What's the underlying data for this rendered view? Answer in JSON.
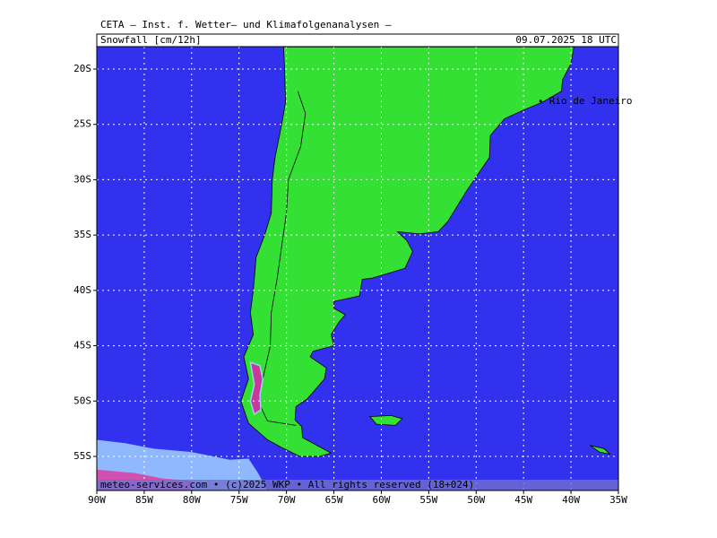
{
  "header": {
    "title": "CETA — Inst. f. Wetter— und Klimafolgenanalysen —",
    "field": "Snowfall [cm/12h]",
    "valid": "09.07.2025 18 UTC"
  },
  "map": {
    "lat_labels": [
      "20S",
      "25S",
      "30S",
      "35S",
      "40S",
      "45S",
      "50S",
      "55S"
    ],
    "lon_labels": [
      "90W",
      "85W",
      "80W",
      "75W",
      "70W",
      "65W",
      "60W",
      "55W",
      "50W",
      "45W",
      "40W",
      "35W"
    ],
    "places": [
      {
        "label": "Rio de Janeiro"
      }
    ],
    "footer": "meteo-services.com • (c)2025 WKP • All rights reserved (18+024)"
  }
}
